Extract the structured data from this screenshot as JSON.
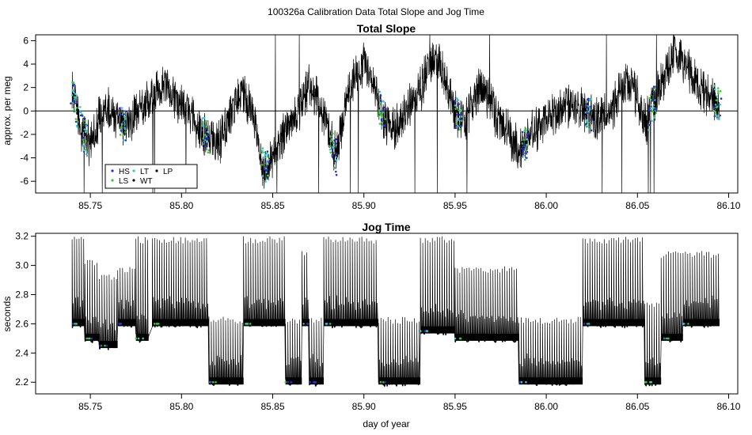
{
  "figure": {
    "suptitle": "100326a   Calibration Data Total Slope and Jog Time",
    "xlabel": "day of year"
  },
  "chart_data": [
    {
      "type": "line",
      "title": "Total Slope",
      "ylabel": "approx. per meg",
      "xlabel": "",
      "xlim": [
        85.72,
        86.105
      ],
      "ylim": [
        -7,
        6.5
      ],
      "x_ticks": [
        "85.75",
        "85.80",
        "85.85",
        "85.90",
        "85.95",
        "86.00",
        "86.05",
        "86.10"
      ],
      "y_ticks": [
        "6",
        "4",
        "2",
        "0",
        "-2",
        "-4",
        "-6"
      ],
      "reference_line_y": 0,
      "grid": false,
      "legend": {
        "placement": "bottom-left",
        "entries": [
          {
            "label": "HS",
            "color": "#2b2bd8"
          },
          {
            "label": "LT",
            "color": "#33cccc"
          },
          {
            "label": "LP",
            "color": "#000000"
          },
          {
            "label": "LS",
            "color": "#33cc33"
          },
          {
            "label": "WT",
            "color": "#000000"
          }
        ]
      },
      "series": [
        {
          "name": "Total Slope",
          "color": "#000000",
          "x": [
            85.74,
            85.745,
            85.75,
            85.755,
            85.76,
            85.765,
            85.77,
            85.775,
            85.78,
            85.785,
            85.79,
            85.795,
            85.8,
            85.805,
            85.81,
            85.815,
            85.82,
            85.825,
            85.83,
            85.835,
            85.84,
            85.845,
            85.85,
            85.855,
            85.86,
            85.865,
            85.87,
            85.875,
            85.88,
            85.885,
            85.89,
            85.895,
            85.9,
            85.905,
            85.91,
            85.915,
            85.92,
            85.925,
            85.93,
            85.935,
            85.94,
            85.945,
            85.95,
            85.955,
            85.96,
            85.965,
            85.97,
            85.975,
            85.98,
            85.985,
            85.99,
            85.995,
            86.0,
            86.005,
            86.01,
            86.015,
            86.02,
            86.025,
            86.03,
            86.035,
            86.04,
            86.045,
            86.05,
            86.055,
            86.06,
            86.065,
            86.07,
            86.075,
            86.08,
            86.085,
            86.09,
            86.095
          ],
          "y": [
            2.0,
            -1.5,
            -3.0,
            -0.5,
            0.0,
            -0.8,
            -1.2,
            -0.5,
            0.8,
            1.5,
            2.0,
            1.5,
            0.5,
            -0.5,
            -1.5,
            -2.5,
            -3.0,
            -1.0,
            1.0,
            1.5,
            -1.0,
            -5.0,
            -4.0,
            -2.5,
            -1.0,
            0.5,
            2.0,
            1.0,
            -1.5,
            -4.0,
            1.0,
            3.0,
            4.0,
            2.5,
            -0.5,
            -1.5,
            -1.0,
            0.5,
            1.5,
            3.5,
            4.5,
            2.5,
            0.0,
            -1.0,
            1.0,
            2.0,
            0.5,
            -1.0,
            -2.0,
            -3.5,
            -2.5,
            -1.5,
            -0.5,
            0.0,
            0.5,
            0.5,
            0.0,
            -0.5,
            -0.5,
            0.0,
            1.5,
            2.5,
            1.0,
            -1.0,
            1.0,
            3.0,
            5.0,
            4.5,
            3.0,
            2.0,
            1.0,
            0.5
          ]
        }
      ]
    },
    {
      "type": "line",
      "title": "Jog Time",
      "ylabel": "seconds",
      "xlabel": "day of year",
      "xlim": [
        85.72,
        86.105
      ],
      "ylim": [
        2.12,
        3.22
      ],
      "x_ticks": [
        "85.75",
        "85.80",
        "85.85",
        "85.90",
        "85.95",
        "86.00",
        "86.05",
        "86.10"
      ],
      "y_ticks": [
        "3.2",
        "3.0",
        "2.8",
        "2.6",
        "2.4",
        "2.2"
      ],
      "grid": false,
      "series": [
        {
          "name": "Jog Time",
          "color": "#000000",
          "segments": [
            {
              "x0": 85.74,
              "x1": 85.747,
              "base": 2.6,
              "peak": 3.2
            },
            {
              "x0": 85.747,
              "x1": 85.755,
              "base": 2.5,
              "peak": 3.05
            },
            {
              "x0": 85.755,
              "x1": 85.765,
              "base": 2.45,
              "peak": 2.95
            },
            {
              "x0": 85.765,
              "x1": 85.775,
              "base": 2.6,
              "peak": 3.0
            },
            {
              "x0": 85.775,
              "x1": 85.782,
              "base": 2.5,
              "peak": 3.2
            },
            {
              "x0": 85.784,
              "x1": 85.815,
              "base": 2.6,
              "peak": 3.2
            },
            {
              "x0": 85.815,
              "x1": 85.834,
              "base": 2.2,
              "peak": 2.65
            },
            {
              "x0": 85.834,
              "x1": 85.857,
              "base": 2.6,
              "peak": 3.2
            },
            {
              "x0": 85.857,
              "x1": 85.866,
              "base": 2.2,
              "peak": 2.65
            },
            {
              "x0": 85.866,
              "x1": 85.87,
              "base": 2.6,
              "peak": 3.1
            },
            {
              "x0": 85.87,
              "x1": 85.878,
              "base": 2.2,
              "peak": 2.65
            },
            {
              "x0": 85.878,
              "x1": 85.908,
              "base": 2.6,
              "peak": 3.2
            },
            {
              "x0": 85.908,
              "x1": 85.931,
              "base": 2.2,
              "peak": 2.65
            },
            {
              "x0": 85.931,
              "x1": 85.95,
              "base": 2.55,
              "peak": 3.2
            },
            {
              "x0": 85.95,
              "x1": 85.985,
              "base": 2.5,
              "peak": 3.0
            },
            {
              "x0": 85.985,
              "x1": 86.02,
              "base": 2.2,
              "peak": 2.65
            },
            {
              "x0": 86.02,
              "x1": 86.054,
              "base": 2.6,
              "peak": 3.2
            },
            {
              "x0": 86.054,
              "x1": 86.063,
              "base": 2.2,
              "peak": 2.75
            },
            {
              "x0": 86.063,
              "x1": 86.075,
              "base": 2.5,
              "peak": 3.1
            },
            {
              "x0": 86.075,
              "x1": 86.095,
              "base": 2.6,
              "peak": 3.1
            }
          ]
        }
      ]
    }
  ]
}
